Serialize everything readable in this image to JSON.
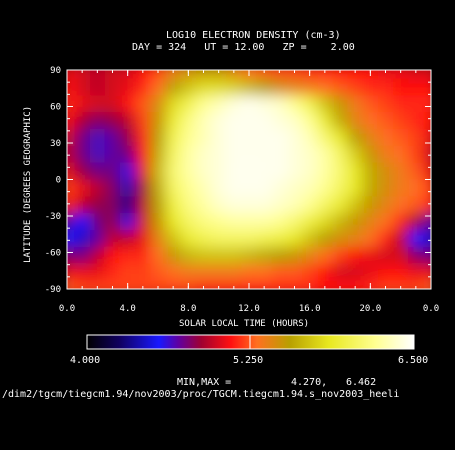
{
  "chart_data": {
    "type": "heatmap",
    "title": "LOG10 ELECTRON DENSITY (cm-3)",
    "subtitle": "DAY = 324   UT = 12.00   ZP =    2.00",
    "xlabel": "SOLAR LOCAL TIME (HOURS)",
    "ylabel": "LATITUDE (DEGREES GEOGRAPHIC)",
    "x_ticks": [
      "0.0",
      "4.0",
      "8.0",
      "12.0",
      "16.0",
      "20.0",
      "0.0"
    ],
    "y_ticks": [
      "90",
      "60",
      "30",
      "0",
      "-30",
      "-60",
      "-90"
    ],
    "xlim": [
      0,
      24
    ],
    "ylim": [
      -90,
      90
    ],
    "colorbar": {
      "min": "4.000",
      "mid": "5.250",
      "max": "6.500",
      "range": [
        4.0,
        6.5
      ]
    },
    "minmax_label": "MIN,MAX =",
    "min_value": "4.270,",
    "max_value": "6.462",
    "grid": [
      [
        5.05,
        5.0,
        4.95,
        5.0,
        5.0,
        5.1,
        5.2,
        5.35,
        5.45,
        5.5,
        5.5,
        5.4,
        5.3,
        5.25,
        5.2,
        5.2,
        5.15,
        5.15,
        5.1,
        5.1,
        5.1,
        5.05,
        5.05,
        5.0,
        5.0
      ],
      [
        5.1,
        5.0,
        4.95,
        5.0,
        5.05,
        5.15,
        5.3,
        5.55,
        5.7,
        5.8,
        5.8,
        5.75,
        5.65,
        5.55,
        5.45,
        5.4,
        5.35,
        5.3,
        5.25,
        5.2,
        5.15,
        5.15,
        5.1,
        5.1,
        5.1
      ],
      [
        5.15,
        5.05,
        5.0,
        5.0,
        5.1,
        5.25,
        5.45,
        5.8,
        6.0,
        6.2,
        6.3,
        6.4,
        6.45,
        6.4,
        6.35,
        6.2,
        6.0,
        5.7,
        5.5,
        5.35,
        5.25,
        5.2,
        5.15,
        5.15,
        5.15
      ],
      [
        5.1,
        4.9,
        4.8,
        4.85,
        4.95,
        5.2,
        5.5,
        5.9,
        6.15,
        6.3,
        6.4,
        6.45,
        6.45,
        6.45,
        6.4,
        6.35,
        6.2,
        5.9,
        5.6,
        5.4,
        5.3,
        5.25,
        5.2,
        5.15,
        5.1
      ],
      [
        5.0,
        4.75,
        4.65,
        4.7,
        4.85,
        5.15,
        5.55,
        6.0,
        6.2,
        6.3,
        6.4,
        6.45,
        6.45,
        6.45,
        6.45,
        6.4,
        6.3,
        6.1,
        5.85,
        5.55,
        5.4,
        5.3,
        5.25,
        5.2,
        5.05
      ],
      [
        4.95,
        4.75,
        4.65,
        4.7,
        4.75,
        5.1,
        5.6,
        6.05,
        6.25,
        6.35,
        6.4,
        6.45,
        6.45,
        6.45,
        6.45,
        6.4,
        6.35,
        6.25,
        6.05,
        5.75,
        5.5,
        5.35,
        5.3,
        5.2,
        5.0
      ],
      [
        5.05,
        4.85,
        4.75,
        4.75,
        4.6,
        5.05,
        5.65,
        6.1,
        6.25,
        6.35,
        6.4,
        6.45,
        6.46,
        6.45,
        6.45,
        6.4,
        6.35,
        6.25,
        6.1,
        5.85,
        5.6,
        5.45,
        5.35,
        5.25,
        5.05
      ],
      [
        5.2,
        5.05,
        4.95,
        4.8,
        4.4,
        4.9,
        5.6,
        6.05,
        6.2,
        6.3,
        6.4,
        6.45,
        6.45,
        6.45,
        6.4,
        6.35,
        6.3,
        6.2,
        6.05,
        5.85,
        5.6,
        5.45,
        5.35,
        5.3,
        5.2
      ],
      [
        5.15,
        4.95,
        4.85,
        4.8,
        4.3,
        4.95,
        5.55,
        5.95,
        6.15,
        6.25,
        6.35,
        6.4,
        6.4,
        6.4,
        6.35,
        6.3,
        6.2,
        6.05,
        5.9,
        5.7,
        5.5,
        5.4,
        5.3,
        5.25,
        5.15
      ],
      [
        4.7,
        4.55,
        4.75,
        4.85,
        4.6,
        5.0,
        5.5,
        5.85,
        6.05,
        6.15,
        6.2,
        6.25,
        6.25,
        6.25,
        6.2,
        6.1,
        5.95,
        5.8,
        5.65,
        5.5,
        5.4,
        5.3,
        5.15,
        4.9,
        4.7
      ],
      [
        4.55,
        4.45,
        4.7,
        4.95,
        4.95,
        5.05,
        5.4,
        5.7,
        5.9,
        6.0,
        6.05,
        6.05,
        6.05,
        6.0,
        5.95,
        5.85,
        5.7,
        5.55,
        5.45,
        5.4,
        5.3,
        5.15,
        4.95,
        4.55,
        4.45
      ],
      [
        4.8,
        4.75,
        4.95,
        5.1,
        5.15,
        5.15,
        5.3,
        5.5,
        5.65,
        5.7,
        5.7,
        5.7,
        5.65,
        5.6,
        5.55,
        5.5,
        5.4,
        5.3,
        5.2,
        5.1,
        5.05,
        5.0,
        5.0,
        4.8,
        4.75
      ],
      [
        5.05,
        5.05,
        5.05,
        5.15,
        5.2,
        5.2,
        5.25,
        5.3,
        5.35,
        5.35,
        5.35,
        5.35,
        5.3,
        5.3,
        5.25,
        5.25,
        5.2,
        5.1,
        5.0,
        5.0,
        5.05,
        5.1,
        5.1,
        5.05,
        5.05
      ],
      [
        5.25,
        5.2,
        5.2,
        5.2,
        5.2,
        5.2,
        5.2,
        5.2,
        5.2,
        5.15,
        5.15,
        5.15,
        5.15,
        5.15,
        5.15,
        5.15,
        5.15,
        5.1,
        5.1,
        5.1,
        5.15,
        5.2,
        5.2,
        5.2,
        5.25
      ]
    ]
  }
}
